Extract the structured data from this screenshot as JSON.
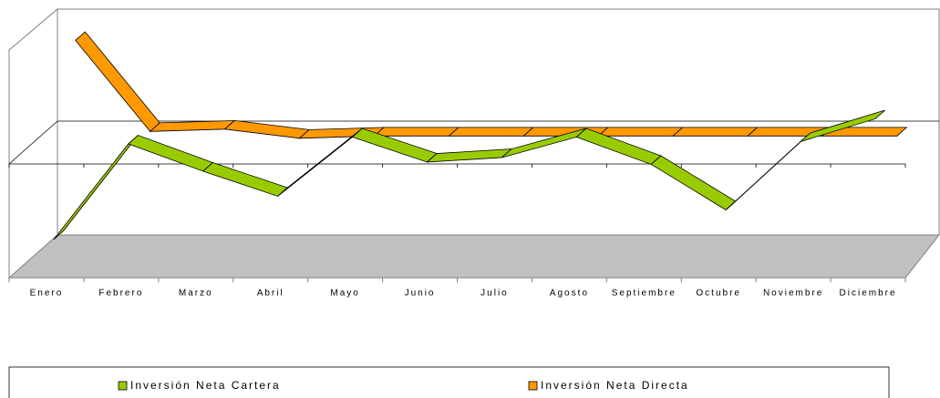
{
  "chart_data": {
    "type": "line3d",
    "categories": [
      "Enero",
      "Febrero",
      "Marzo",
      "Abril",
      "Mayo",
      "Junio",
      "Julio",
      "Agosto",
      "Septiembre",
      "Octubre",
      "Noviembre",
      "Diciembre"
    ],
    "series": [
      {
        "name": "Inversión Neta Cartera",
        "color": "#99cc00",
        "values": [
          -3.6,
          0.6,
          -0.6,
          -1.7,
          0.9,
          -0.2,
          0,
          0.9,
          -0.3,
          -2.3,
          0.7,
          1.7
        ]
      },
      {
        "name": "Inversión Neta Directa",
        "color": "#ff9900",
        "values": [
          4.3,
          0.3,
          0.4,
          0,
          0.1,
          0.1,
          0.1,
          0.1,
          0.1,
          0.1,
          0.1,
          0.1
        ]
      }
    ],
    "ylim": [
      -5,
      5
    ],
    "legend": "bottom"
  }
}
